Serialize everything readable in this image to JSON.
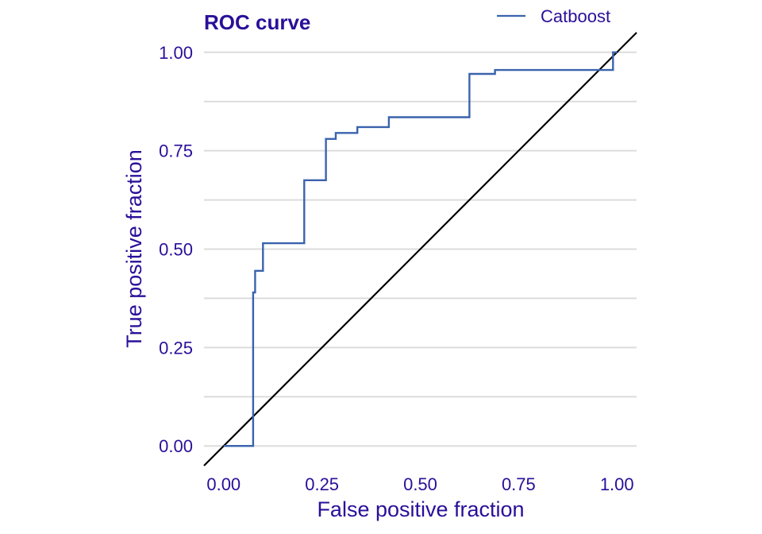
{
  "chart_data": {
    "type": "line",
    "title": "ROC curve",
    "xlabel": "False positive fraction",
    "ylabel": "True positive fraction",
    "xlim": [
      -0.05,
      1.05
    ],
    "ylim": [
      -0.05,
      1.05
    ],
    "x_ticks": [
      "0.00",
      "0.25",
      "0.50",
      "0.75",
      "1.00"
    ],
    "y_ticks": [
      "0.00",
      "0.25",
      "0.50",
      "0.75",
      "1.00"
    ],
    "grid": "horizontal",
    "legend_position": "top-right",
    "series": [
      {
        "name": "Catboost",
        "color": "#3a63ad",
        "step": true,
        "x": [
          0.0,
          0.075,
          0.075,
          0.08,
          0.08,
          0.1,
          0.1,
          0.205,
          0.205,
          0.26,
          0.26,
          0.285,
          0.285,
          0.34,
          0.34,
          0.42,
          0.42,
          0.625,
          0.625,
          0.69,
          0.69,
          0.99,
          0.99,
          1.0
        ],
        "y": [
          0.0,
          0.0,
          0.39,
          0.39,
          0.445,
          0.445,
          0.515,
          0.515,
          0.675,
          0.675,
          0.78,
          0.78,
          0.795,
          0.795,
          0.81,
          0.81,
          0.835,
          0.835,
          0.945,
          0.945,
          0.955,
          0.955,
          1.0,
          1.0
        ]
      }
    ],
    "reference_line": {
      "color": "#000000",
      "x": [
        -0.05,
        1.05
      ],
      "y": [
        -0.05,
        1.05
      ]
    },
    "text_color": "#2a0f99",
    "grid_color": "#dcdcdc"
  }
}
